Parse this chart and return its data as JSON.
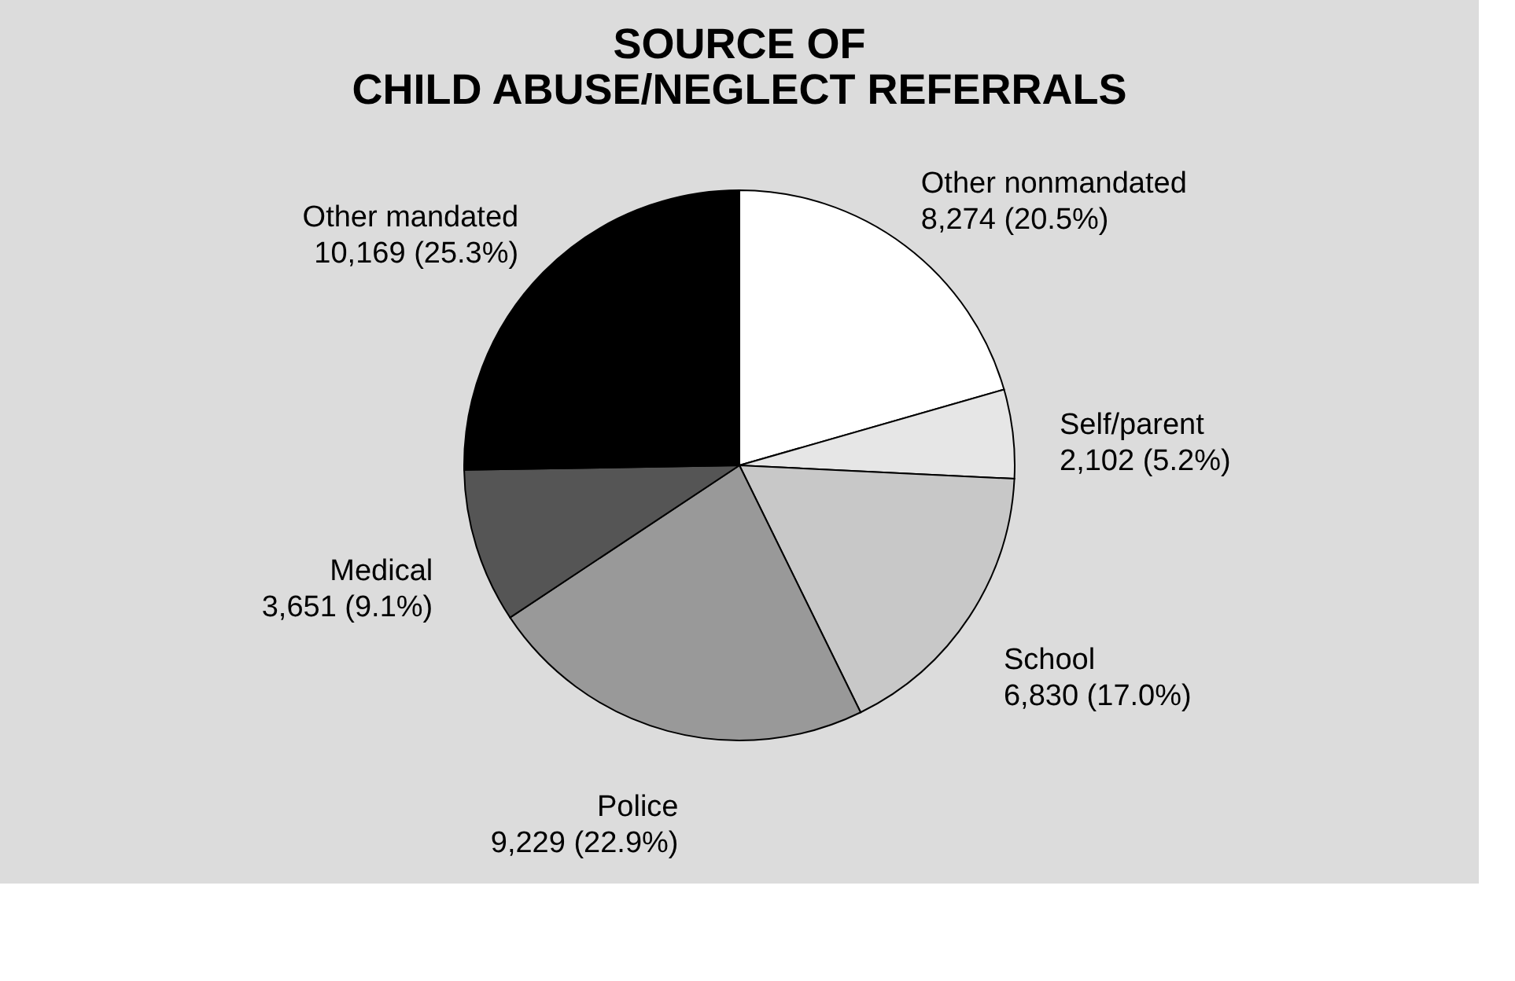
{
  "chart_data": {
    "type": "pie",
    "title": "SOURCE OF\nCHILD ABUSE/NEGLECT REFERRALS",
    "categories": [
      "Other nonmandated",
      "Self/parent",
      "School",
      "Police",
      "Medical",
      "Other mandated"
    ],
    "values": [
      8274,
      2102,
      6830,
      9229,
      3651,
      10169
    ],
    "value_labels": [
      "8,274 (20.5%)",
      "2,102 (5.2%)",
      "6,830 (17.0%)",
      "9,229 (22.9%)",
      "3,651 (9.1%)",
      "10,169 (25.3%)"
    ],
    "colors": [
      "#ffffff",
      "#e6e6e6",
      "#c8c8c8",
      "#999999",
      "#555555",
      "#000000"
    ],
    "legend": false
  }
}
